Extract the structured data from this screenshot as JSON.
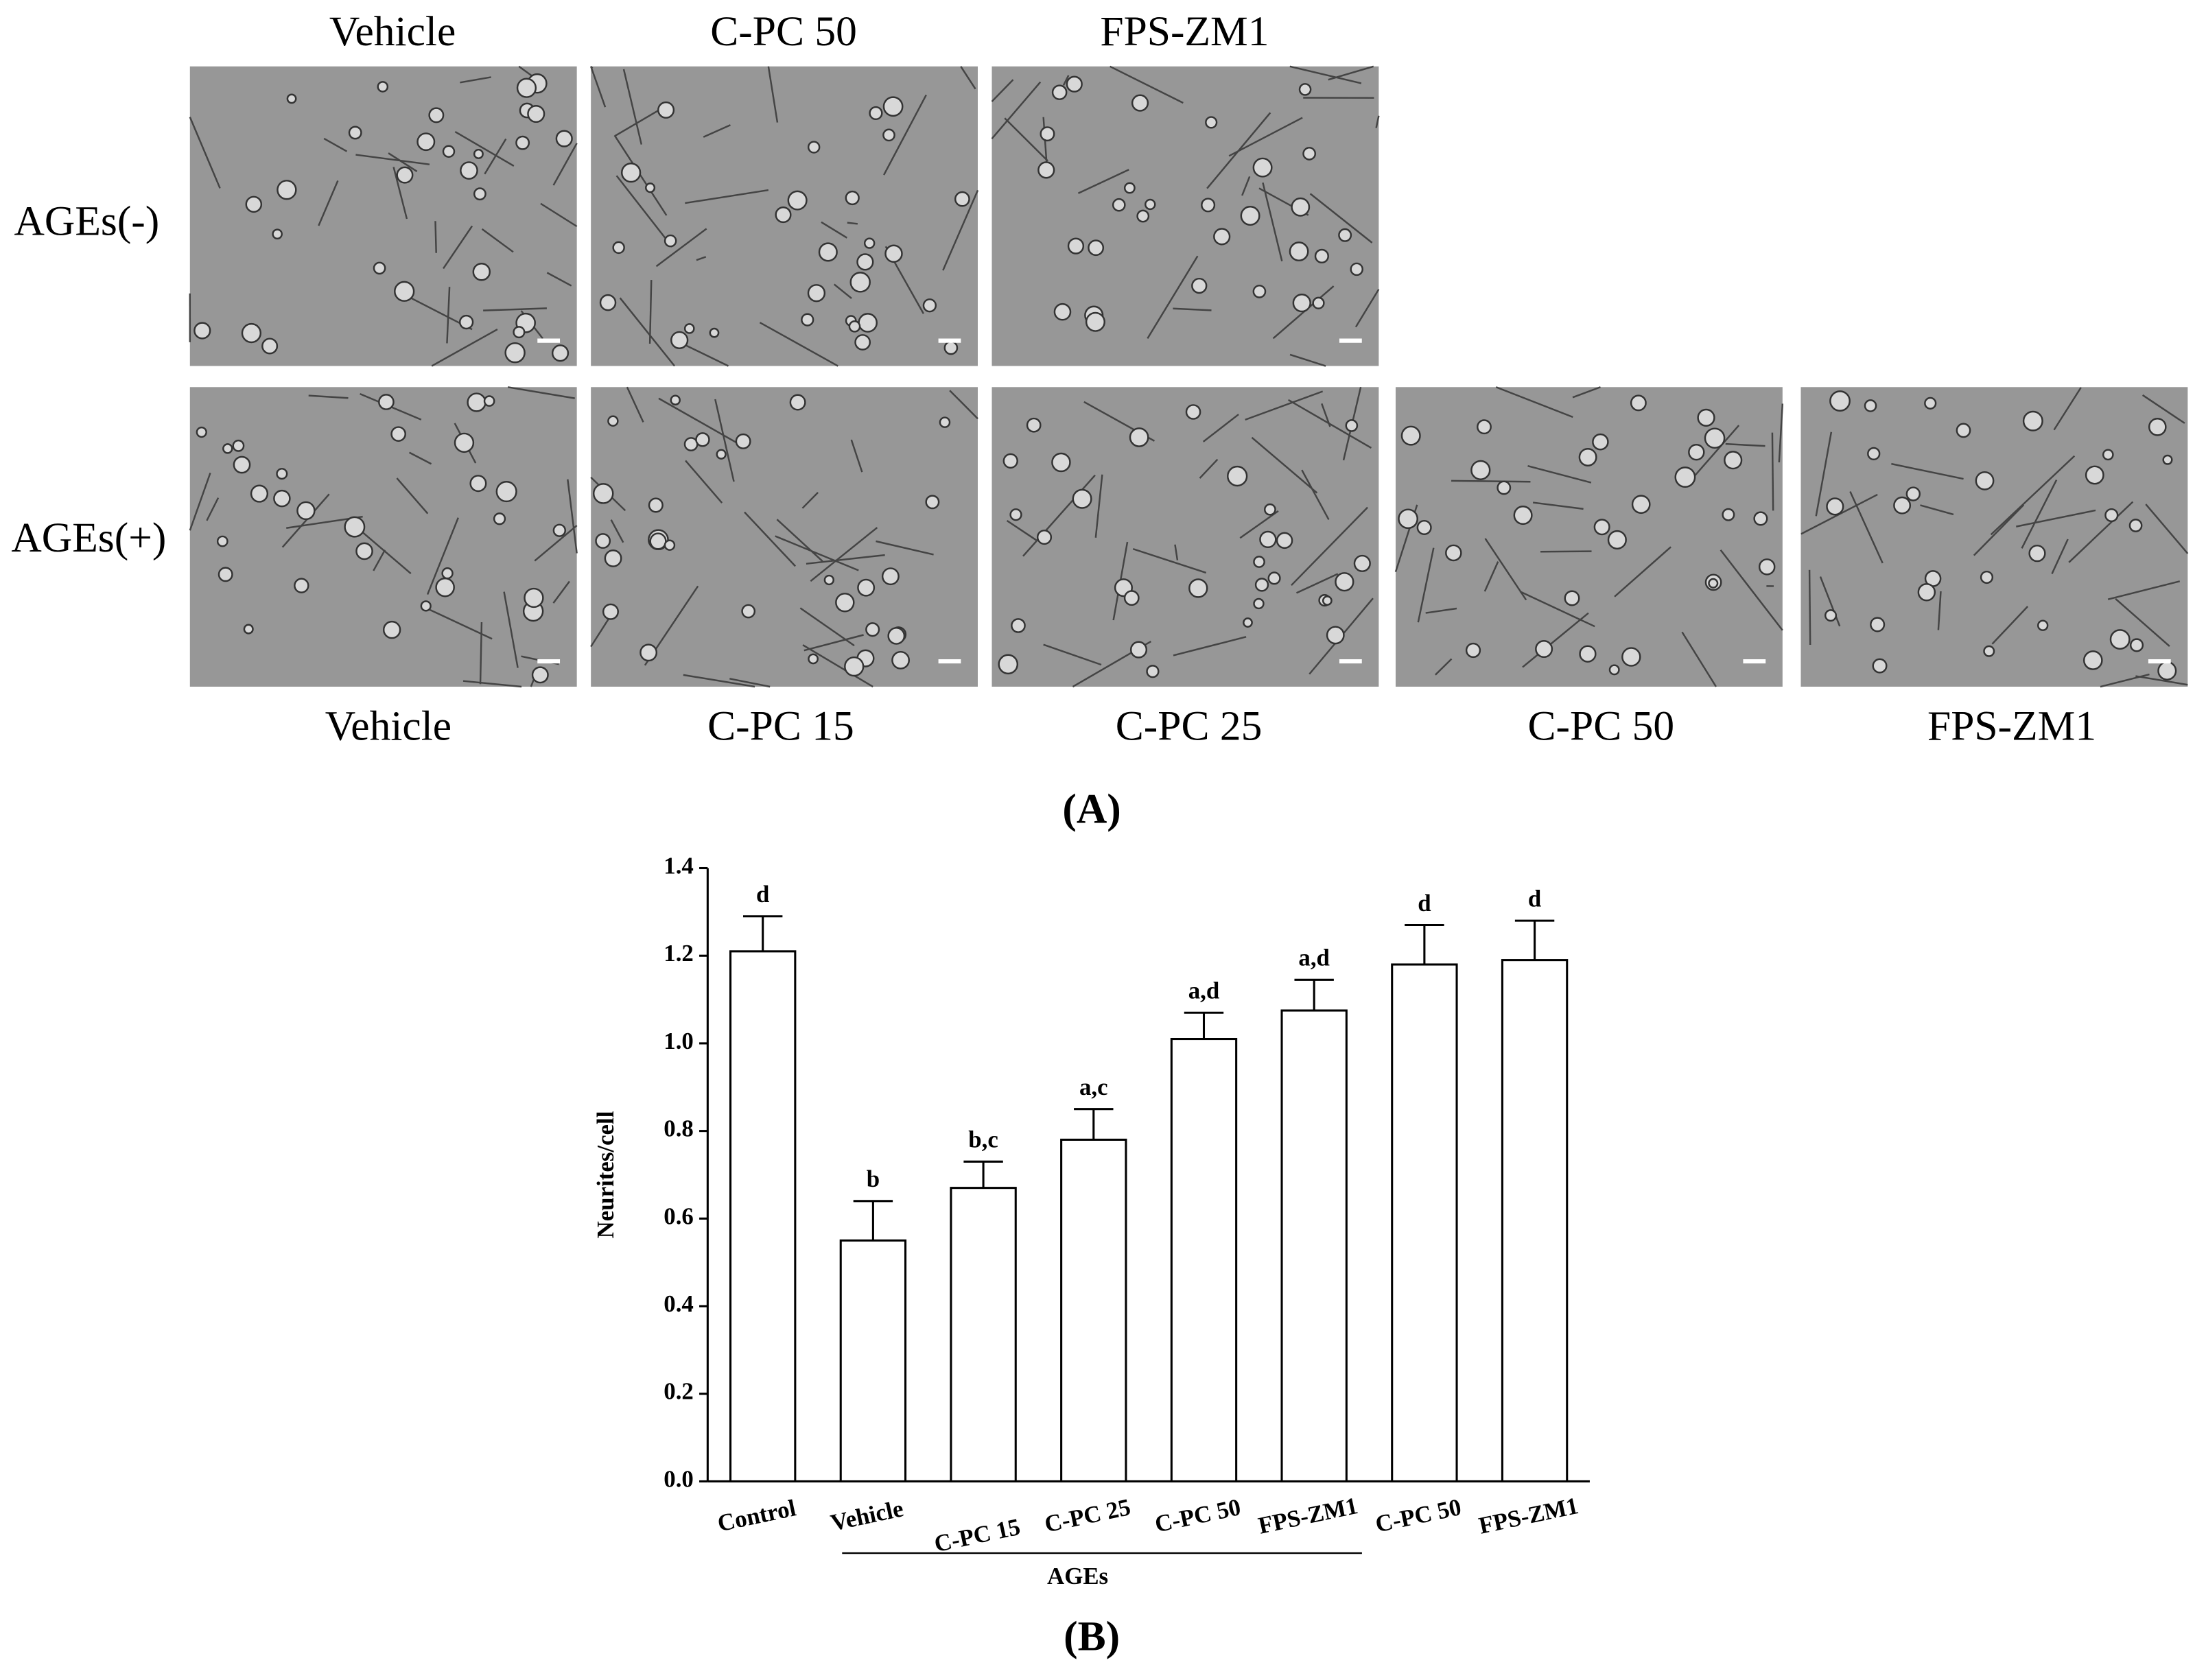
{
  "panel_a": {
    "top_labels": [
      "Vehicle",
      "C-PC 50",
      "FPS-ZM1"
    ],
    "row_labels": [
      "AGEs(-)",
      "AGEs(+)"
    ],
    "bottom_labels": [
      "Vehicle",
      "C-PC 15",
      "C-PC 25",
      "C-PC 50",
      "FPS-ZM1"
    ],
    "label": "(A)"
  },
  "chart_data": {
    "type": "bar",
    "ylabel": "Neurites/cell",
    "categories": [
      "Control",
      "Vehicle",
      "C-PC 15",
      "C-PC 25",
      "C-PC 50",
      "FPS-ZM1",
      "C-PC 50",
      "FPS-ZM1"
    ],
    "values": [
      1.21,
      0.55,
      0.67,
      0.78,
      1.01,
      1.075,
      1.18,
      1.19
    ],
    "errors": [
      0.08,
      0.09,
      0.06,
      0.07,
      0.06,
      0.07,
      0.09,
      0.09
    ],
    "annotations": [
      "d",
      "b",
      "b,c",
      "a,c",
      "a,d",
      "a,d",
      "d",
      "d"
    ],
    "group_label": "AGEs",
    "color": "#ffffff",
    "ylim": [
      0,
      1.4
    ],
    "yticks": [
      {
        "value": 0,
        "label": "0.0"
      },
      0.2,
      0.4,
      0.6,
      0.8,
      {
        "value": 1,
        "label": "1.0"
      },
      1.2,
      1.4
    ],
    "label": "(B)"
  }
}
